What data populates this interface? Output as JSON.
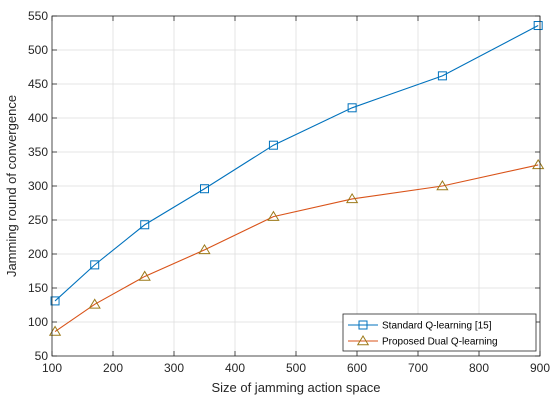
{
  "chart_data": {
    "type": "line",
    "title": "",
    "xlabel": "Size of jamming action space",
    "ylabel": "Jamming round of convergence",
    "xlim": [
      100,
      900
    ],
    "ylim": [
      50,
      550
    ],
    "xticks": [
      100,
      200,
      300,
      400,
      500,
      600,
      700,
      800,
      900
    ],
    "yticks": [
      50,
      100,
      150,
      200,
      250,
      300,
      350,
      400,
      450,
      500,
      550
    ],
    "grid": true,
    "legend_position": "bottom-right",
    "series": [
      {
        "name": "Standard Q-learning [15]",
        "color": "#0072BD",
        "marker": "square",
        "x": [
          105,
          170,
          252,
          350,
          463,
          592,
          740,
          897
        ],
        "y": [
          131,
          184,
          243,
          296,
          360,
          415,
          462,
          536
        ]
      },
      {
        "name": "Proposed Dual Q-learning",
        "color": "#D95319",
        "marker_color": "#9C7A1A",
        "marker": "triangle",
        "x": [
          105,
          170,
          252,
          350,
          463,
          592,
          740,
          897
        ],
        "y": [
          86,
          126,
          167,
          206,
          255,
          281,
          300,
          331
        ]
      }
    ]
  }
}
